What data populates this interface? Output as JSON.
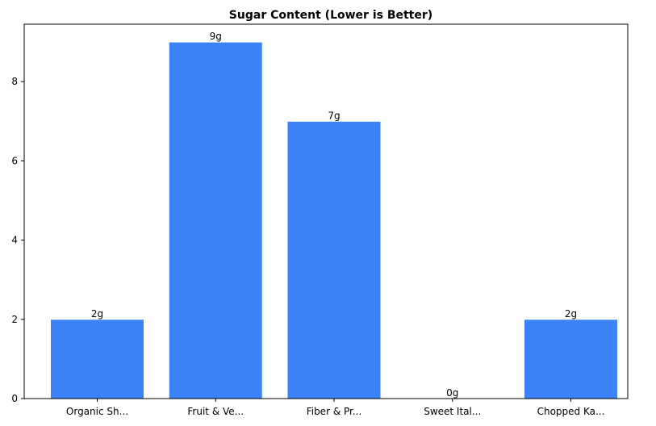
{
  "chart_data": {
    "type": "bar",
    "title": "Sugar Content (Lower is Better)",
    "categories": [
      "Organic Sh...",
      "Fruit & Ve...",
      "Fiber & Pr...",
      "Sweet Ital...",
      "Chopped Ka..."
    ],
    "values": [
      2,
      9,
      7,
      0,
      2
    ],
    "value_labels": [
      "2g",
      "9g",
      "7g",
      "0g",
      "2g"
    ],
    "color": "#3b82f6",
    "ylim": [
      0,
      9.45
    ],
    "yticks": [
      0,
      2,
      4,
      6,
      8
    ],
    "grid": false
  }
}
